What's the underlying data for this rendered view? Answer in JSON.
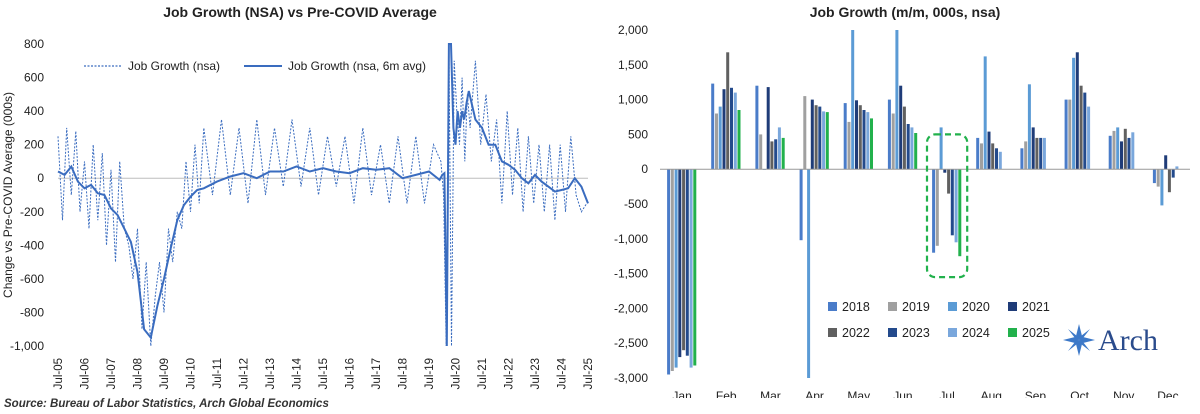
{
  "source": "Source: Bureau of Labor Statistics, Arch Global Economics",
  "logo_text": "Arch",
  "colors": {
    "line": "#3a6cbf",
    "green": "#22b14c",
    "years": {
      "2018": "#4a7cc9",
      "2019": "#a0a0a0",
      "2020": "#5b9bd5",
      "2021": "#1f3c78",
      "2022": "#606060",
      "2023": "#234a8c",
      "2024": "#7aa7dc",
      "2025": "#22b14c"
    }
  },
  "chart_data": [
    {
      "type": "line",
      "title": "Job Growth (NSA) vs Pre-COVID Average",
      "ylabel": "Change vs Pre-COVID Average (000s)",
      "xlabel": "",
      "ylim": [
        -1000,
        800
      ],
      "yticks": [
        "800",
        "600",
        "400",
        "200",
        "0",
        "-200",
        "-400",
        "-600",
        "-800",
        "-1,000"
      ],
      "xticks": [
        "Jul-05",
        "Jul-06",
        "Jul-07",
        "Jul-08",
        "Jul-09",
        "Jul-10",
        "Jul-11",
        "Jul-12",
        "Jul-13",
        "Jul-14",
        "Jul-15",
        "Jul-16",
        "Jul-17",
        "Jul-18",
        "Jul-19",
        "Jul-20",
        "Jul-21",
        "Jul-22",
        "Jul-23",
        "Jul-24",
        "Jul-25"
      ],
      "legend": [
        "Job Growth (nsa)",
        "Job Growth (nsa, 6m avg)"
      ],
      "series": [
        {
          "name": "Job Growth (nsa, 6m avg)",
          "x": [
            2005.5,
            2005.75,
            2006.0,
            2006.25,
            2006.5,
            2006.75,
            2007.0,
            2007.25,
            2007.5,
            2007.75,
            2008.0,
            2008.25,
            2008.5,
            2008.75,
            2009.0,
            2009.25,
            2009.5,
            2009.75,
            2010.0,
            2010.25,
            2010.5,
            2010.75,
            2011.0,
            2011.5,
            2012.0,
            2012.5,
            2013.0,
            2013.5,
            2014.0,
            2014.5,
            2015.0,
            2015.5,
            2016.0,
            2016.5,
            2017.0,
            2017.5,
            2018.0,
            2018.5,
            2019.0,
            2019.5,
            2019.9,
            2020.0,
            2020.08,
            2020.17,
            2020.25,
            2020.33,
            2020.42,
            2020.5,
            2020.58,
            2020.67,
            2020.75,
            2020.83,
            2020.92,
            2021.0,
            2021.25,
            2021.5,
            2021.75,
            2022.0,
            2022.25,
            2022.5,
            2022.75,
            2023.0,
            2023.25,
            2023.5,
            2023.75,
            2024.0,
            2024.25,
            2024.5,
            2024.75,
            2025.0,
            2025.25,
            2025.5
          ],
          "values": [
            40,
            20,
            70,
            -20,
            -60,
            -40,
            -90,
            -100,
            -180,
            -220,
            -300,
            -380,
            -560,
            -900,
            -950,
            -760,
            -600,
            -420,
            -250,
            -160,
            -110,
            -70,
            -60,
            -20,
            10,
            30,
            0,
            40,
            40,
            70,
            40,
            60,
            40,
            30,
            60,
            50,
            60,
            0,
            20,
            40,
            -10,
            20,
            30,
            -1000,
            800,
            800,
            300,
            200,
            400,
            300,
            400,
            350,
            450,
            520,
            350,
            300,
            200,
            200,
            100,
            80,
            50,
            0,
            -30,
            20,
            -20,
            -50,
            -80,
            -70,
            -60,
            0,
            -50,
            -150
          ]
        },
        {
          "name": "Job Growth (nsa)",
          "x": [
            2005.5,
            2005.67,
            2005.83,
            2006.0,
            2006.17,
            2006.33,
            2006.5,
            2006.67,
            2006.83,
            2007.0,
            2007.17,
            2007.33,
            2007.5,
            2007.67,
            2007.83,
            2008.0,
            2008.17,
            2008.33,
            2008.5,
            2008.67,
            2008.83,
            2009.0,
            2009.17,
            2009.33,
            2009.5,
            2009.67,
            2009.83,
            2010.0,
            2010.17,
            2010.33,
            2010.5,
            2010.67,
            2010.83,
            2011.0,
            2011.33,
            2011.67,
            2012.0,
            2012.33,
            2012.67,
            2013.0,
            2013.33,
            2013.67,
            2014.0,
            2014.33,
            2014.67,
            2015.0,
            2015.33,
            2015.67,
            2016.0,
            2016.33,
            2016.67,
            2017.0,
            2017.33,
            2017.67,
            2018.0,
            2018.33,
            2018.67,
            2019.0,
            2019.33,
            2019.67,
            2019.95,
            2020.05,
            2020.15,
            2020.25,
            2020.35,
            2020.45,
            2020.55,
            2020.65,
            2020.75,
            2020.85,
            2020.95,
            2021.05,
            2021.25,
            2021.45,
            2021.65,
            2021.85,
            2022.05,
            2022.25,
            2022.45,
            2022.65,
            2022.85,
            2023.05,
            2023.25,
            2023.45,
            2023.65,
            2023.85,
            2024.05,
            2024.25,
            2024.45,
            2024.65,
            2024.85,
            2025.05,
            2025.25,
            2025.45
          ],
          "values": [
            250,
            -250,
            300,
            -100,
            280,
            -200,
            100,
            -300,
            200,
            -250,
            150,
            -400,
            50,
            -500,
            100,
            -300,
            -400,
            -600,
            -300,
            -900,
            -500,
            -1000,
            -700,
            -500,
            -800,
            -300,
            -500,
            -200,
            -300,
            100,
            -200,
            200,
            -150,
            300,
            -100,
            350,
            -100,
            300,
            -150,
            350,
            -100,
            300,
            -50,
            350,
            -50,
            300,
            -100,
            250,
            -50,
            250,
            -150,
            300,
            -100,
            200,
            -150,
            250,
            -150,
            250,
            -150,
            200,
            100,
            -100,
            -1000,
            800,
            -1000,
            700,
            400,
            200,
            600,
            100,
            500,
            300,
            700,
            200,
            500,
            100,
            350,
            -150,
            400,
            -100,
            300,
            -200,
            250,
            -150,
            200,
            -200,
            200,
            -250,
            200,
            -200,
            250,
            -100,
            -200,
            -150
          ]
        }
      ]
    },
    {
      "type": "bar",
      "title": "Job Growth (m/m, 000s, nsa)",
      "xlabel": "",
      "ylabel": "",
      "ylim": [
        -3000,
        2000
      ],
      "yticks": [
        "2,000",
        "1,500",
        "1,000",
        "500",
        "0",
        "-500",
        "-1,000",
        "-1,500",
        "-2,000",
        "-2,500",
        "-3,000"
      ],
      "categories": [
        "Jan",
        "Feb",
        "Mar",
        "Apr",
        "May",
        "Jun",
        "Jul",
        "Aug",
        "Sep",
        "Oct",
        "Nov",
        "Dec"
      ],
      "legend_position": "bottom-right",
      "series": [
        {
          "name": "2018",
          "values": [
            -2950,
            1230,
            1200,
            -1020,
            950,
            1000,
            -1200,
            450,
            300,
            1000,
            480,
            -200
          ]
        },
        {
          "name": "2019",
          "values": [
            -2900,
            800,
            500,
            1050,
            680,
            800,
            -1100,
            370,
            400,
            1000,
            550,
            -250
          ]
        },
        {
          "name": "2020",
          "values": [
            -2850,
            900,
            -10,
            -3000,
            2000,
            2000,
            600,
            1620,
            1220,
            1600,
            600,
            -520
          ]
        },
        {
          "name": "2021",
          "values": [
            -2700,
            1150,
            1180,
            1000,
            990,
            1200,
            -50,
            540,
            600,
            1680,
            400,
            200
          ]
        },
        {
          "name": "2022",
          "values": [
            -2600,
            1680,
            400,
            920,
            920,
            900,
            -350,
            370,
            450,
            1200,
            580,
            -330
          ]
        },
        {
          "name": "2023",
          "values": [
            -2680,
            1170,
            430,
            900,
            850,
            650,
            -950,
            300,
            450,
            1100,
            450,
            -120
          ]
        },
        {
          "name": "2024",
          "values": [
            -2850,
            1100,
            600,
            830,
            820,
            600,
            -1050,
            250,
            450,
            900,
            530,
            40
          ]
        },
        {
          "name": "2025",
          "values": [
            -2820,
            850,
            450,
            820,
            730,
            520,
            -1250,
            null,
            null,
            null,
            null,
            null
          ]
        }
      ],
      "annotation": "dashed box around Jul 2024–2025"
    }
  ]
}
